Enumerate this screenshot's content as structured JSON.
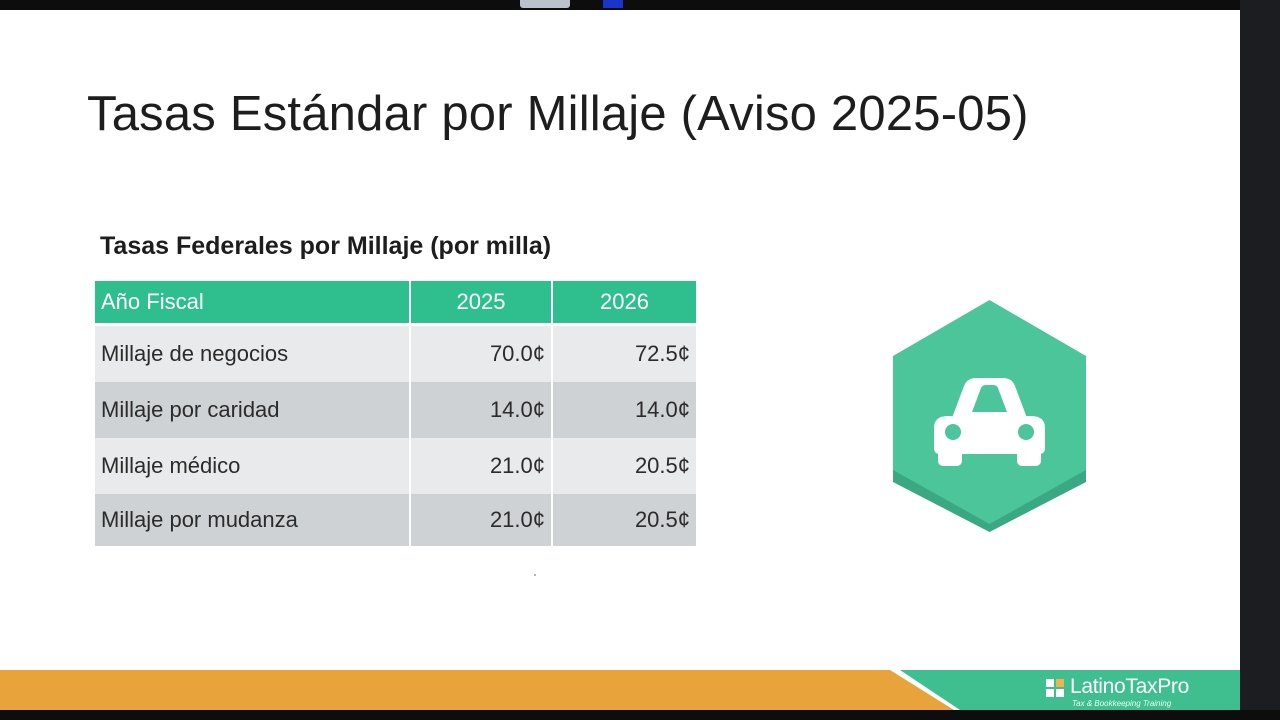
{
  "slide": {
    "title": "Tasas Estándar por Millaje (Aviso 2025-05)",
    "table_caption": "Tasas Federales por Millaje (por milla)",
    "table": {
      "headers": [
        "Año Fiscal",
        "2025",
        "2026"
      ],
      "rows": [
        [
          "Millaje de negocios",
          "70.0¢",
          "72.5¢"
        ],
        [
          "Millaje por caridad",
          "14.0¢",
          "14.0¢"
        ],
        [
          "Millaje médico",
          "21.0¢",
          "20.5¢"
        ],
        [
          "Millaje por mudanza",
          "21.0¢",
          "20.5¢"
        ]
      ]
    },
    "illustration_icon": "car-icon"
  },
  "footer": {
    "brand_name": "LatinoTaxPro",
    "brand_tagline": "Tax & Bookkeeping Training"
  },
  "colors": {
    "header_green": "#2fbf8e",
    "hex_green": "#4cc59b",
    "footer_orange": "#e8a33a",
    "footer_green": "#3fbf8f",
    "row_light": "#e9eaec",
    "row_dark": "#cfd2d5"
  }
}
